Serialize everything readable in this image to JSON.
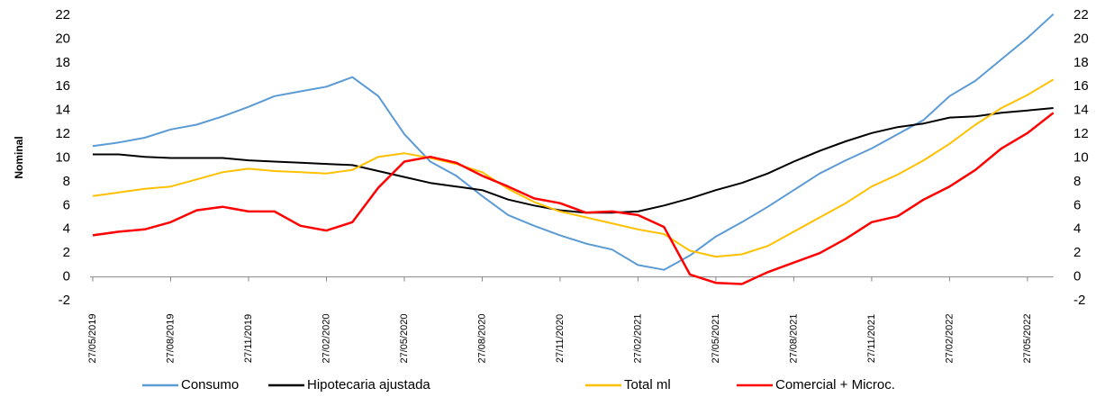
{
  "chart_data": {
    "type": "line",
    "y_label": "Nominal",
    "x": [
      "27/05/2019",
      "27/06/2019",
      "27/07/2019",
      "27/08/2019",
      "27/09/2019",
      "27/10/2019",
      "27/11/2019",
      "27/12/2019",
      "27/01/2020",
      "27/02/2020",
      "27/03/2020",
      "27/04/2020",
      "27/05/2020",
      "27/06/2020",
      "27/07/2020",
      "27/08/2020",
      "27/09/2020",
      "27/10/2020",
      "27/11/2020",
      "27/12/2020",
      "27/01/2021",
      "27/02/2021",
      "27/03/2021",
      "27/04/2021",
      "27/05/2021",
      "27/06/2021",
      "27/07/2021",
      "27/08/2021",
      "27/09/2021",
      "27/10/2021",
      "27/11/2021",
      "27/12/2021",
      "27/01/2022",
      "27/02/2022",
      "27/03/2022",
      "27/04/2022",
      "27/05/2022",
      "27/06/2022"
    ],
    "xticks": [
      "27/05/2019",
      "27/08/2019",
      "27/11/2019",
      "27/02/2020",
      "27/05/2020",
      "27/08/2020",
      "27/11/2020",
      "27/02/2021",
      "27/05/2021",
      "27/08/2021",
      "27/11/2021",
      "27/02/2022",
      "27/05/2022"
    ],
    "series": [
      {
        "name": "Consumo",
        "color": "#5b9bd5",
        "values": [
          11.0,
          11.3,
          11.7,
          12.4,
          12.8,
          13.5,
          14.3,
          15.2,
          15.6,
          16.0,
          16.8,
          15.2,
          12.0,
          9.7,
          8.5,
          6.8,
          5.2,
          4.3,
          3.5,
          2.8,
          2.3,
          1.0,
          0.6,
          1.8,
          3.4,
          4.6,
          5.9,
          7.3,
          8.7,
          9.8,
          10.8,
          12.0,
          13.2,
          15.2,
          16.5,
          18.3,
          20.1,
          22.1
        ]
      },
      {
        "name": "Hipotecaria ajustada",
        "color": "#000000",
        "values": [
          10.3,
          10.3,
          10.1,
          10.0,
          10.0,
          10.0,
          9.8,
          9.7,
          9.6,
          9.5,
          9.4,
          8.9,
          8.4,
          7.9,
          7.6,
          7.3,
          6.5,
          6.0,
          5.6,
          5.4,
          5.4,
          5.5,
          6.0,
          6.6,
          7.3,
          7.9,
          8.7,
          9.7,
          10.6,
          11.4,
          12.1,
          12.6,
          12.9,
          13.4,
          13.5,
          13.8,
          14.0,
          14.2
        ]
      },
      {
        "name": "Total ml",
        "color": "#ffc000",
        "values": [
          6.8,
          7.1,
          7.4,
          7.6,
          8.2,
          8.8,
          9.1,
          8.9,
          8.8,
          8.7,
          9.0,
          10.1,
          10.4,
          10.0,
          9.5,
          8.8,
          7.4,
          6.3,
          5.5,
          5.0,
          4.5,
          4.0,
          3.6,
          2.2,
          1.7,
          1.9,
          2.6,
          3.8,
          5.0,
          6.2,
          7.6,
          8.6,
          9.8,
          11.2,
          12.8,
          14.2,
          15.3,
          16.6
        ]
      },
      {
        "name": "Comercial + Microc.",
        "color": "#ff0000",
        "values": [
          3.5,
          3.8,
          4.0,
          4.6,
          5.6,
          5.9,
          5.5,
          5.5,
          4.3,
          3.9,
          4.6,
          7.5,
          9.7,
          10.1,
          9.6,
          8.5,
          7.6,
          6.6,
          6.2,
          5.4,
          5.5,
          5.2,
          4.2,
          0.2,
          -0.5,
          -0.6,
          0.4,
          1.2,
          2.0,
          3.2,
          4.6,
          5.1,
          6.5,
          7.6,
          9.0,
          10.8,
          12.1,
          13.8
        ]
      }
    ],
    "ylim": [
      -2,
      22
    ],
    "yticks": [
      -2,
      0,
      2,
      4,
      6,
      8,
      10,
      12,
      14,
      16,
      18,
      20,
      22
    ],
    "legend": "bottom"
  }
}
